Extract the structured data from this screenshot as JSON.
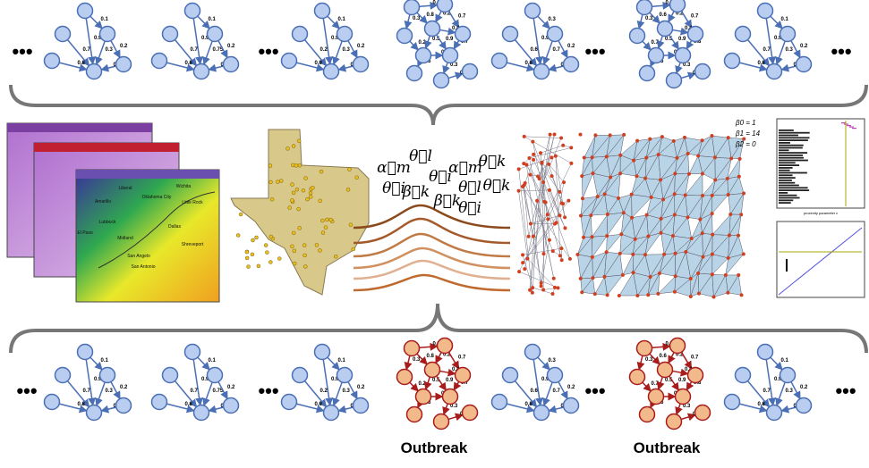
{
  "ellipsis": "•••",
  "top_graphs": [
    {
      "weights": [
        0.1,
        0.9,
        0.7,
        0.3,
        0.2,
        0.4,
        0.8
      ]
    },
    {
      "weights": [
        0.1,
        0.9,
        0.7,
        0.75,
        0.2,
        0.4,
        0.8
      ]
    },
    {
      "weights": [
        0.1,
        0.9,
        0.2,
        0.3,
        0.2,
        0.4,
        0.9
      ]
    },
    {
      "weights": [
        0.9,
        0.3,
        0.8,
        0.2,
        0.7,
        0.4,
        0.2,
        0.5,
        0.9,
        0.7,
        0.3,
        0.5,
        0.3,
        0.2
      ]
    },
    {
      "weights": [
        0.3,
        0.9,
        0.6,
        0.7,
        0.2,
        0.4,
        0.8
      ]
    },
    {
      "weights": [
        0.9,
        0.3,
        0.6,
        0.2,
        0.7,
        0.4,
        0.7,
        0.5,
        0.9,
        0.8,
        0.3,
        0.5,
        0.3,
        0.2
      ]
    },
    {
      "weights": [
        0.1,
        0.9,
        0.7,
        0.3,
        0.2,
        0.4,
        0.8
      ]
    }
  ],
  "bottom_graphs": [
    {
      "weights": [
        0.1,
        0.9,
        0.7,
        0.3,
        0.2,
        0.4,
        0.8
      ]
    },
    {
      "weights": [
        0.1,
        0.9,
        0.7,
        0.75,
        0.2,
        0.4,
        0.8
      ]
    },
    {
      "weights": [
        0.1,
        0.9,
        0.2,
        0.3,
        0.2,
        0.4,
        0.9
      ]
    },
    {
      "weights": [
        0.9,
        0.3,
        0.8,
        0.2,
        0.7,
        0.4,
        0.2,
        0.5,
        0.9,
        0.7,
        0.3,
        0.5,
        0.3,
        0.2
      ],
      "label": "Outbreak"
    },
    {
      "weights": [
        0.3,
        0.9,
        0.6,
        0.7,
        0.2,
        0.4,
        0.8
      ]
    },
    {
      "weights": [
        0.9,
        0.3,
        0.6,
        0.2,
        0.7,
        0.4,
        0.7,
        0.5,
        0.9,
        0.8,
        0.3,
        0.5,
        0.3,
        0.2
      ],
      "label": "Outbreak"
    },
    {
      "weights": [
        0.1,
        0.9,
        0.7,
        0.3,
        0.2,
        0.4,
        0.8
      ]
    }
  ],
  "map_cities": [
    "Liberal",
    "Amarillo",
    "Oklahoma City",
    "Lubbock",
    "Wichita",
    "Little Rock",
    "El Paso",
    "Midland",
    "San Angelo",
    "Dallas",
    "San Antonio",
    "Shreveport"
  ],
  "symbols": [
    "α⃗m",
    "θ⃗l",
    "α⃗m",
    "θ⃗k",
    "θ⃗i",
    "β⃗k",
    "θ⃗i",
    "β⃗k",
    "θ⃗l",
    "θ⃗k",
    "θ⃗i"
  ],
  "betti": [
    "β0 = 1",
    "β1 = 14",
    "β2 = 0"
  ],
  "axis_label": "proximity parameter ε"
}
